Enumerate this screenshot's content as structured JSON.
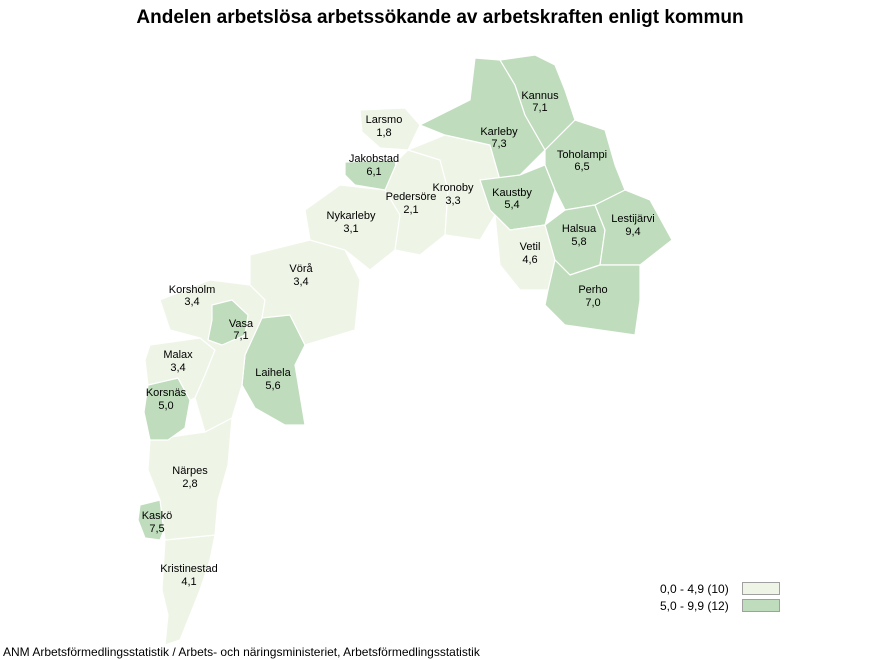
{
  "title": "Andelen arbetslösa arbetssökande av arbetskraften enligt kommun",
  "source": "ANM Arbetsförmedlingsstatistik / Arbets- och näringsministeriet, Arbetsförmedlingsstatistik",
  "colors": {
    "low": "#eef4e6",
    "high": "#bfdcbc",
    "stroke": "#ffffff"
  },
  "legend": [
    {
      "label": "0,0 - 4,9 (10)",
      "class": "low"
    },
    {
      "label": "5,0 - 9,9 (12)",
      "class": "high"
    }
  ],
  "municipalities": [
    {
      "name": "Kannus",
      "value": "7,1",
      "class": "high"
    },
    {
      "name": "Larsmo",
      "value": "1,8",
      "class": "low"
    },
    {
      "name": "Karleby",
      "value": "7,3",
      "class": "high"
    },
    {
      "name": "Toholampi",
      "value": "6,5",
      "class": "high"
    },
    {
      "name": "Jakobstad",
      "value": "6,1",
      "class": "high"
    },
    {
      "name": "Kronoby",
      "value": "3,3",
      "class": "low"
    },
    {
      "name": "Pedersöre",
      "value": "2,1",
      "class": "low"
    },
    {
      "name": "Kaustby",
      "value": "5,4",
      "class": "high"
    },
    {
      "name": "Nykarleby",
      "value": "3,1",
      "class": "low"
    },
    {
      "name": "Lestijärvi",
      "value": "9,4",
      "class": "high"
    },
    {
      "name": "Halsua",
      "value": "5,8",
      "class": "high"
    },
    {
      "name": "Vetil",
      "value": "4,6",
      "class": "low"
    },
    {
      "name": "Vörå",
      "value": "3,4",
      "class": "low"
    },
    {
      "name": "Perho",
      "value": "7,0",
      "class": "high"
    },
    {
      "name": "Korsholm",
      "value": "3,4",
      "class": "low"
    },
    {
      "name": "Vasa",
      "value": "7,1",
      "class": "high"
    },
    {
      "name": "Malax",
      "value": "3,4",
      "class": "low"
    },
    {
      "name": "Laihela",
      "value": "5,6",
      "class": "high"
    },
    {
      "name": "Korsnäs",
      "value": "5,0",
      "class": "high"
    },
    {
      "name": "Närpes",
      "value": "2,8",
      "class": "low"
    },
    {
      "name": "Kaskö",
      "value": "7,5",
      "class": "high"
    },
    {
      "name": "Kristinestad",
      "value": "4,1",
      "class": "low"
    }
  ]
}
